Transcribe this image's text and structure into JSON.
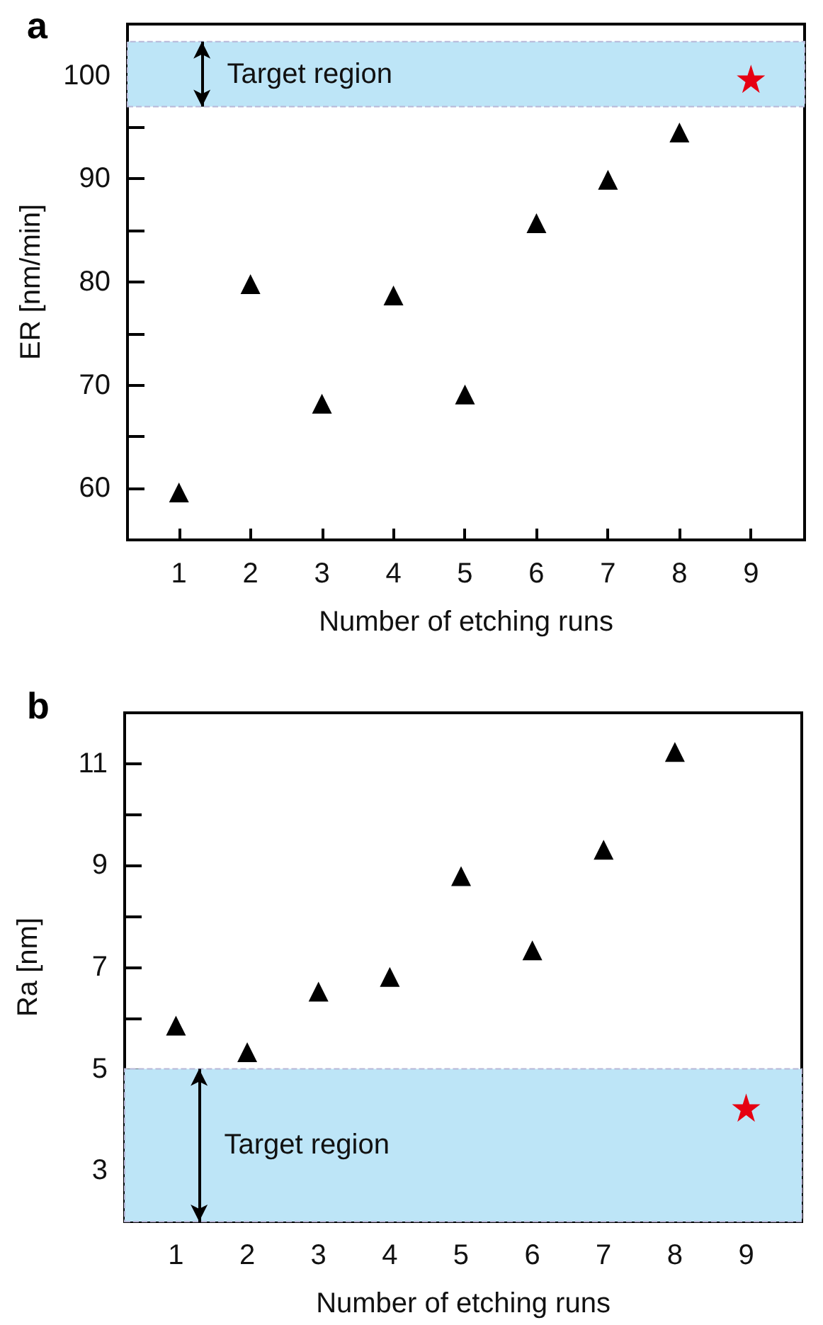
{
  "chart_data": [
    {
      "type": "scatter",
      "title": "a",
      "xlabel": "Number of etching runs",
      "ylabel": "ER [nm/min]",
      "x": [
        1,
        2,
        3,
        4,
        5,
        6,
        7,
        8,
        9
      ],
      "series": [
        {
          "color": "#000000",
          "marker": "triangle",
          "values": [
            59.6,
            79.8,
            68.2,
            78.7,
            69.1,
            85.7,
            89.9,
            94.5,
            null
          ]
        },
        {
          "color": "#e60012",
          "marker": "star",
          "values": [
            null,
            null,
            null,
            null,
            null,
            null,
            null,
            null,
            99.7
          ]
        }
      ],
      "xlim": [
        0.28,
        9.75
      ],
      "xticks": [
        1,
        2,
        3,
        4,
        5,
        6,
        7,
        8,
        9
      ],
      "ylim": [
        55,
        105
      ],
      "yticks": [
        {
          "value": 55,
          "label": null
        },
        60,
        {
          "value": 65,
          "label": null
        },
        70,
        {
          "value": 75,
          "label": null
        },
        80,
        {
          "value": 85,
          "label": null
        },
        90,
        {
          "value": 95,
          "label": null
        },
        100
      ],
      "bands": [
        {
          "axis": "y",
          "from": 97,
          "to": 103.3,
          "label": "Target region",
          "color": "#bde5f7"
        }
      ],
      "grid": false
    },
    {
      "type": "scatter",
      "title": "b",
      "xlabel": "Number of etching runs",
      "ylabel": "Ra [nm]",
      "x": [
        1,
        2,
        3,
        4,
        5,
        6,
        7,
        8,
        9
      ],
      "series": [
        {
          "color": "#000000",
          "marker": "triangle",
          "values": [
            5.85,
            5.33,
            6.52,
            6.81,
            8.79,
            7.33,
            9.31,
            11.23,
            null
          ]
        },
        {
          "color": "#e60012",
          "marker": "star",
          "values": [
            null,
            null,
            null,
            null,
            null,
            null,
            null,
            null,
            4.24
          ]
        }
      ],
      "xlim": [
        0.28,
        9.78
      ],
      "xticks": [
        1,
        2,
        3,
        4,
        5,
        6,
        7,
        8,
        9
      ],
      "ylim": [
        2,
        12
      ],
      "yticks": [
        3,
        {
          "value": 4,
          "label": null
        },
        5,
        {
          "value": 6,
          "label": null
        },
        7,
        {
          "value": 8,
          "label": null
        },
        9,
        {
          "value": 10,
          "label": null
        },
        11
      ],
      "bands": [
        {
          "axis": "y",
          "from": 2,
          "to": 5,
          "label": "Target region",
          "color": "#bde5f7"
        }
      ],
      "grid": false
    }
  ]
}
